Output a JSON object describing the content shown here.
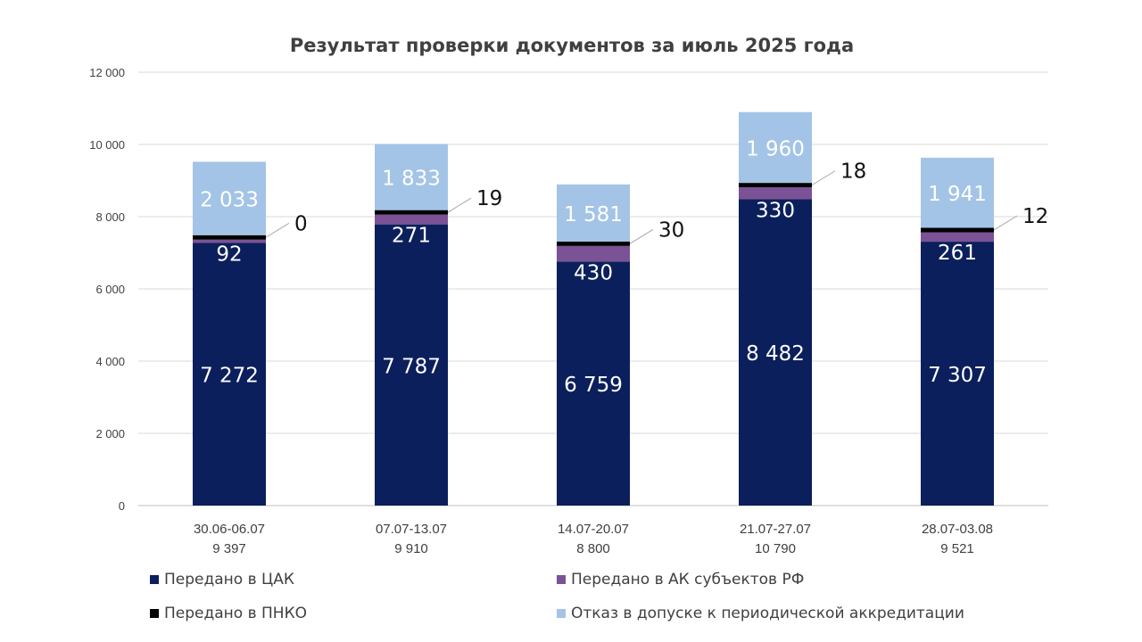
{
  "chart_data": {
    "type": "bar",
    "stacked": true,
    "title": "Результат проверки документов за июль 2025 года",
    "categories": [
      "30.06-06.07",
      "07.07-13.07",
      "14.07-20.07",
      "21.07-27.07",
      "28.07-03.08"
    ],
    "category_totals": [
      "9 397",
      "9 910",
      "8 800",
      "10 790",
      "9 521"
    ],
    "ylim": [
      0,
      12000
    ],
    "yticks": [
      0,
      2000,
      4000,
      6000,
      8000,
      10000,
      12000
    ],
    "ytick_labels": [
      "0",
      "2 000",
      "4 000",
      "6 000",
      "8 000",
      "10 000",
      "12 000"
    ],
    "grid": true,
    "legend_position": "bottom",
    "series": [
      {
        "name": "Передано в ЦАК",
        "color": "#0b1f5c",
        "values": [
          7272,
          7787,
          6759,
          8482,
          7307
        ],
        "labels": [
          "7 272",
          "7 787",
          "6 759",
          "8 482",
          "7 307"
        ]
      },
      {
        "name": "Передано в АК субъектов РФ",
        "color": "#7b5295",
        "values": [
          92,
          271,
          430,
          330,
          261
        ],
        "labels": [
          "92",
          "271",
          "430",
          "330",
          "261"
        ]
      },
      {
        "name": "Передано в ПНКО",
        "color": "#000000",
        "values": [
          0,
          19,
          30,
          18,
          12
        ],
        "labels": [
          "0",
          "19",
          "30",
          "18",
          "12"
        ]
      },
      {
        "name": "Отказ в допуске к периодической аккредитации",
        "color": "#a3c4e6",
        "values": [
          2033,
          1833,
          1581,
          1960,
          1941
        ],
        "labels": [
          "2 033",
          "1 833",
          "1 581",
          "1 960",
          "1 941"
        ]
      }
    ]
  }
}
